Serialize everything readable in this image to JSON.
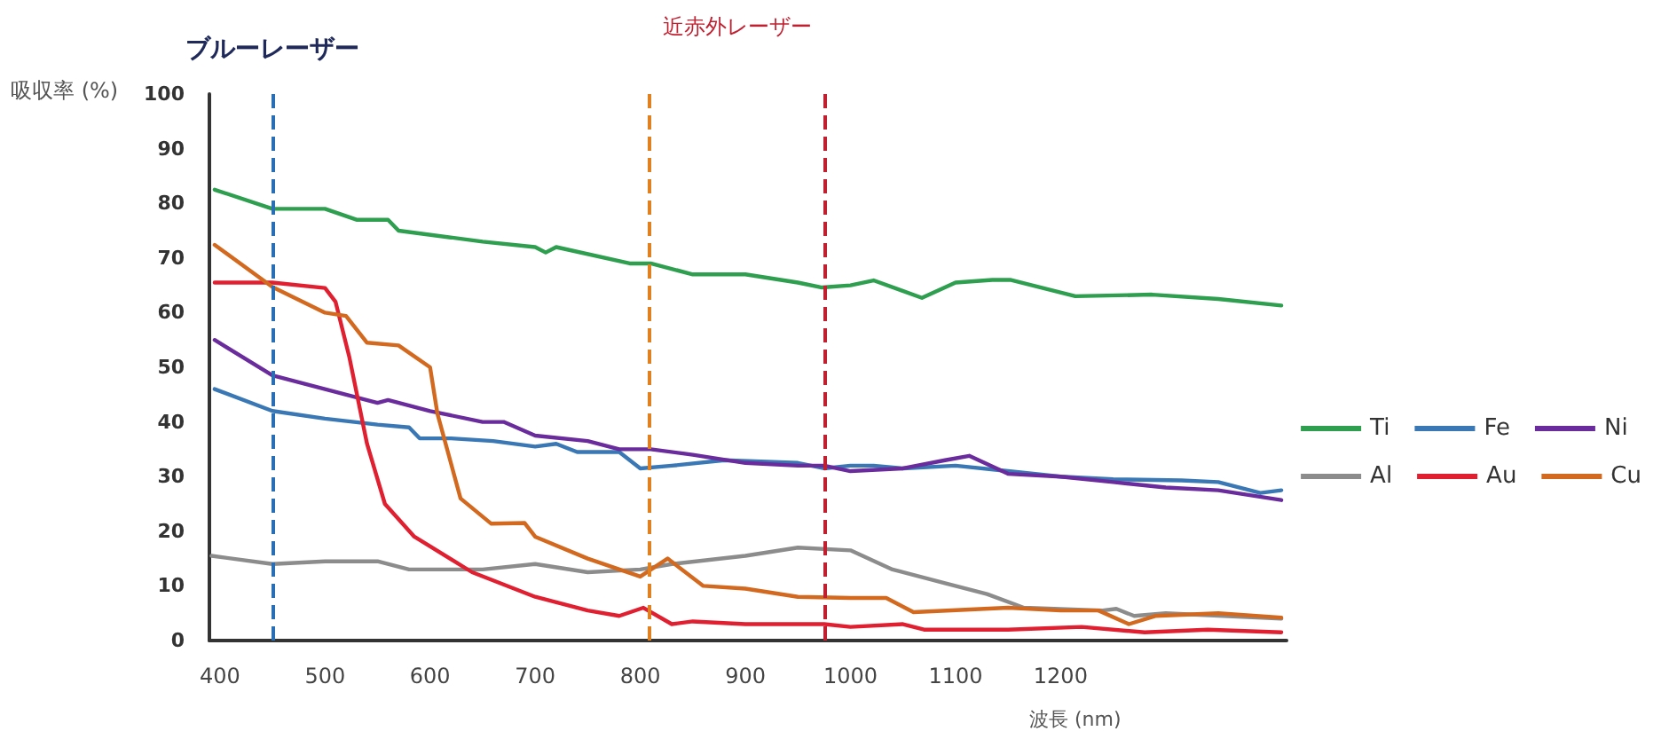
{
  "chart_data": {
    "type": "line",
    "xlabel": "波長 (nm)",
    "ylabel": "吸収率 (%)",
    "annotations": [
      "近赤外レーザー"
    ],
    "xlim": [
      390,
      1415
    ],
    "xticks": [
      400,
      500,
      600,
      700,
      800,
      900,
      1000,
      1100,
      1200
    ],
    "ylim": [
      0,
      100
    ],
    "yticks": [
      0,
      10,
      20,
      30,
      40,
      50,
      60,
      70,
      80,
      90,
      100
    ],
    "grid": false,
    "legend": "right",
    "marker": "none",
    "line_style": "solid",
    "ref_lines": [
      {
        "axis": "x",
        "value": 450,
        "label": "ブルーレーザー",
        "color": "#2a6fb5",
        "line_style": "dashed"
      },
      {
        "axis": "x",
        "value": 808,
        "label": null,
        "color": "#e08020",
        "line_style": "dashed"
      },
      {
        "axis": "x",
        "value": 976,
        "label": null,
        "color": "#c02030",
        "line_style": "dashed"
      }
    ],
    "series": [
      {
        "name": "Ti",
        "color": "#2e9e4f",
        "x": [
          395,
          450,
          500,
          530,
          560,
          570,
          650,
          700,
          710,
          720,
          790,
          810,
          850,
          900,
          950,
          973,
          1000,
          1022,
          1068,
          1100,
          1135,
          1152,
          1214,
          1287,
          1350,
          1410
        ],
        "values": [
          82.5,
          79,
          79,
          77,
          77,
          75,
          73,
          72,
          71,
          72,
          69,
          69,
          67,
          67,
          65.5,
          64.6,
          65,
          65.9,
          62.7,
          65.5,
          66,
          66,
          63,
          63.3,
          62.5,
          61.3
        ]
      },
      {
        "name": "Fe",
        "color": "#3a78b5",
        "x": [
          395,
          450,
          500,
          550,
          580,
          590,
          620,
          660,
          700,
          720,
          740,
          780,
          800,
          830,
          880,
          950,
          975,
          1000,
          1022,
          1050,
          1100,
          1150,
          1200,
          1250,
          1315,
          1350,
          1390,
          1410
        ],
        "values": [
          46,
          42,
          40.6,
          39.5,
          39,
          37,
          37,
          36.5,
          35.5,
          36,
          34.5,
          34.5,
          31.5,
          32,
          33,
          32.5,
          31.5,
          32,
          32,
          31.5,
          32,
          31,
          30,
          29.5,
          29.3,
          29,
          27,
          27.5
        ]
      },
      {
        "name": "Ni",
        "color": "#6a2c9c",
        "x": [
          395,
          450,
          500,
          550,
          560,
          600,
          650,
          670,
          700,
          750,
          780,
          810,
          850,
          900,
          950,
          975,
          1000,
          1050,
          1090,
          1113,
          1150,
          1200,
          1250,
          1300,
          1350,
          1410
        ],
        "values": [
          55,
          48.5,
          46,
          43.5,
          44,
          42,
          40,
          40,
          37.5,
          36.5,
          35,
          35,
          34,
          32.5,
          32,
          32,
          31,
          31.5,
          33,
          33.8,
          30.5,
          30,
          29,
          28,
          27.5,
          25.7
        ]
      },
      {
        "name": "Al",
        "color": "#8c8c8c",
        "x": [
          392,
          450,
          500,
          550,
          580,
          650,
          700,
          750,
          800,
          830,
          900,
          950,
          1000,
          1040,
          1090,
          1130,
          1165,
          1240,
          1253,
          1270,
          1300,
          1410
        ],
        "values": [
          15.5,
          14,
          14.5,
          14.5,
          13,
          13,
          14,
          12.5,
          13,
          14,
          15.5,
          17,
          16.5,
          13,
          10.5,
          8.5,
          6,
          5.5,
          5.8,
          4.5,
          5,
          4
        ]
      },
      {
        "name": "Au",
        "color": "#e02030",
        "x": [
          395,
          450,
          500,
          510,
          523,
          540,
          557,
          585,
          640,
          700,
          750,
          780,
          803,
          830,
          850,
          900,
          975,
          1000,
          1050,
          1070,
          1150,
          1220,
          1280,
          1340,
          1410
        ],
        "values": [
          65.5,
          65.5,
          64.5,
          62,
          52,
          36,
          25,
          19,
          12.5,
          8,
          5.5,
          4.5,
          6,
          3,
          3.5,
          3,
          3,
          2.5,
          3,
          2,
          2,
          2.5,
          1.5,
          2,
          1.5
        ]
      },
      {
        "name": "Cu",
        "color": "#d2691e",
        "x": [
          395,
          450,
          500,
          520,
          540,
          570,
          600,
          607,
          629,
          658,
          690,
          700,
          750,
          800,
          826,
          860,
          900,
          950,
          1000,
          1034,
          1060,
          1150,
          1200,
          1236,
          1265,
          1290,
          1350,
          1410
        ],
        "values": [
          72.4,
          64.7,
          60,
          59.4,
          54.5,
          54,
          50,
          41.5,
          26,
          21.4,
          21.5,
          19,
          15,
          11.7,
          15,
          10,
          9.5,
          8,
          7.8,
          7.8,
          5.2,
          6,
          5.5,
          5.5,
          3,
          4.5,
          5,
          4.2
        ]
      }
    ]
  }
}
